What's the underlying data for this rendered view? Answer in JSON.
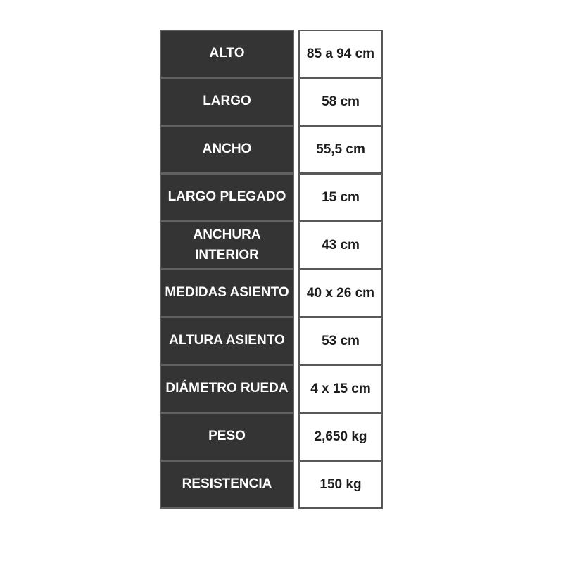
{
  "table": {
    "name": "product-specifications",
    "rows": [
      {
        "label": "ALTO",
        "value": "85 a 94 cm"
      },
      {
        "label": "LARGO",
        "value": "58 cm"
      },
      {
        "label": "ANCHO",
        "value": "55,5 cm"
      },
      {
        "label": "LARGO PLEGADO",
        "value": "15 cm"
      },
      {
        "label": "ANCHURA INTERIOR",
        "value": "43 cm"
      },
      {
        "label": "MEDIDAS ASIENTO",
        "value": "40 x 26 cm"
      },
      {
        "label": "ALTURA ASIENTO",
        "value": "53 cm"
      },
      {
        "label": "DIÁMETRO RUEDA",
        "value": "4 x 15 cm"
      },
      {
        "label": "PESO",
        "value": "2,650 kg"
      },
      {
        "label": "RESISTENCIA",
        "value": "150 kg"
      }
    ],
    "colors": {
      "label_background": "#343434",
      "label_text": "#ffffff",
      "value_background": "#ffffff",
      "value_text": "#1d1d1d",
      "grid": "#5f5f5f",
      "page_background": "#ffffff"
    }
  }
}
